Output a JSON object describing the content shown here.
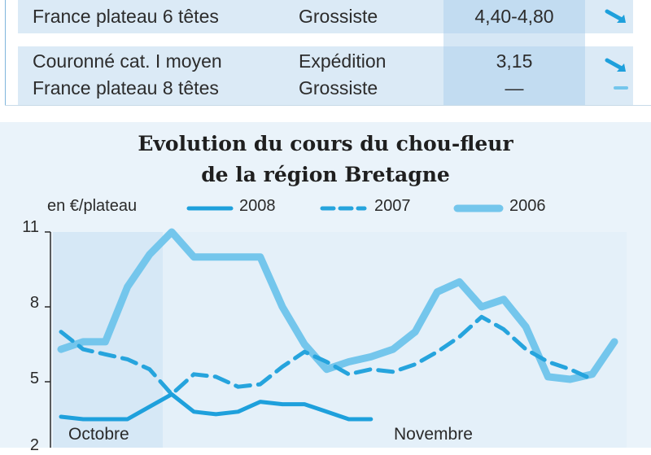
{
  "table": {
    "rows": [
      {
        "product_lines": [
          "",
          "France plateau 6 têtes"
        ],
        "stage_lines": [
          "",
          "Grossiste"
        ],
        "price_lines": [
          "",
          "4,40-4,80"
        ],
        "trends": [
          "",
          "down"
        ]
      },
      {
        "product_lines": [
          "Couronné cat. I moyen",
          "France plateau 8 têtes"
        ],
        "stage_lines": [
          "Expédition",
          "Grossiste"
        ],
        "price_lines": [
          "3,15",
          "—"
        ],
        "trends": [
          "down",
          "stable"
        ]
      }
    ]
  },
  "colors": {
    "series_2008": "#1ea0dc",
    "series_2007": "#26a4dd",
    "series_2006": "#74c6ec",
    "panel": "#eaf3fa",
    "price_column": "#c2dcf1"
  },
  "chart_data": {
    "type": "line",
    "title": [
      "Evolution du cours du chou-fleur",
      "de la région Bretagne"
    ],
    "ylabel": "en €/plateau",
    "yticks": [
      "11",
      "8",
      "5",
      "2"
    ],
    "ylim": [
      2,
      11
    ],
    "x_labels": [
      "Octobre",
      "Novembre"
    ],
    "series": [
      {
        "name": "2008",
        "style": "solid",
        "values": [
          3.6,
          3.5,
          3.5,
          3.5,
          4.0,
          4.5,
          3.8,
          3.7,
          3.8,
          4.2,
          4.1,
          4.1,
          3.8,
          3.5,
          3.5
        ]
      },
      {
        "name": "2007",
        "style": "dashed",
        "values": [
          7.0,
          6.3,
          6.1,
          5.9,
          5.5,
          4.5,
          5.3,
          5.2,
          4.8,
          4.9,
          5.6,
          6.2,
          5.8,
          5.3,
          5.5,
          5.4,
          5.7,
          6.2,
          6.8,
          7.6,
          7.1,
          6.3,
          5.8,
          5.5,
          5.1
        ]
      },
      {
        "name": "2006",
        "style": "thick",
        "values": [
          6.3,
          6.6,
          6.6,
          8.8,
          10.1,
          11.0,
          10.0,
          10.0,
          10.0,
          10.0,
          8.0,
          6.5,
          5.5,
          5.8,
          6.0,
          6.3,
          7.0,
          8.6,
          9.0,
          8.0,
          8.3,
          7.2,
          5.2,
          5.1,
          5.3,
          6.6
        ]
      }
    ]
  }
}
